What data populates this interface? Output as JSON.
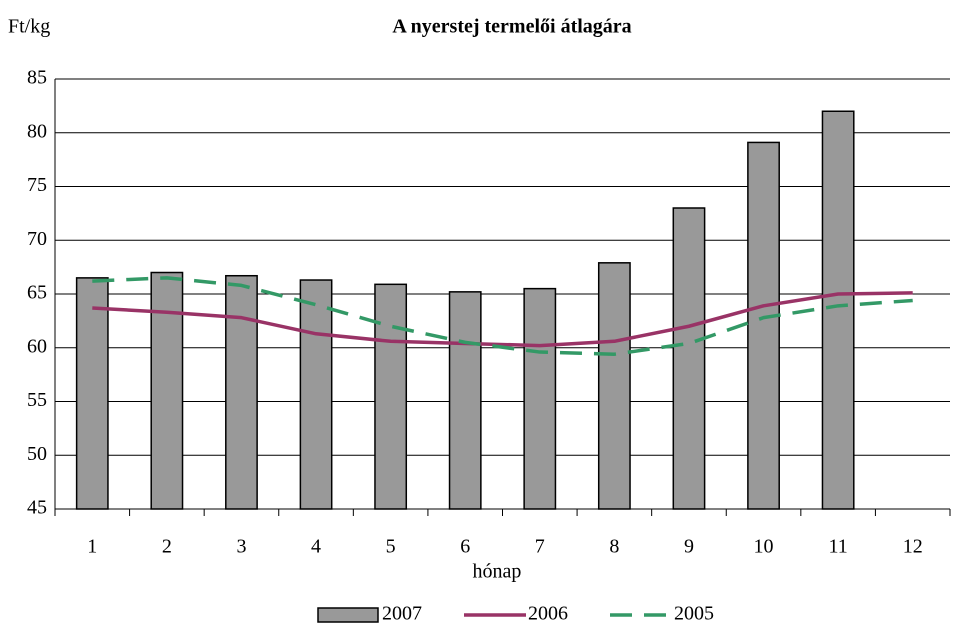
{
  "chart_data": {
    "type": "bar_line",
    "title": "A nyerstej termelői átlagára",
    "y_label": "Ft/kg",
    "x_label": "hónap",
    "categories": [
      "1",
      "2",
      "3",
      "4",
      "5",
      "6",
      "7",
      "8",
      "9",
      "10",
      "11",
      "12"
    ],
    "series": [
      {
        "name": "2007",
        "type": "bar",
        "color": "#999999",
        "values": [
          66.5,
          67.0,
          66.7,
          66.3,
          65.9,
          65.2,
          65.5,
          67.9,
          73.0,
          79.1,
          82.0,
          null
        ]
      },
      {
        "name": "2006",
        "type": "line",
        "color": "#993366",
        "dash": false,
        "values": [
          63.7,
          63.3,
          62.8,
          61.3,
          60.6,
          60.4,
          60.2,
          60.6,
          62.0,
          63.9,
          65.0,
          65.1
        ]
      },
      {
        "name": "2005",
        "type": "line",
        "color": "#339966",
        "dash": true,
        "values": [
          66.2,
          66.5,
          65.8,
          64.0,
          62.0,
          60.5,
          59.6,
          59.4,
          60.4,
          62.8,
          63.9,
          64.4
        ]
      }
    ],
    "ylim": [
      45,
      85
    ],
    "yticks": [
      45,
      50,
      55,
      60,
      65,
      70,
      75,
      80,
      85
    ],
    "grid": true,
    "legend": "bottom"
  }
}
